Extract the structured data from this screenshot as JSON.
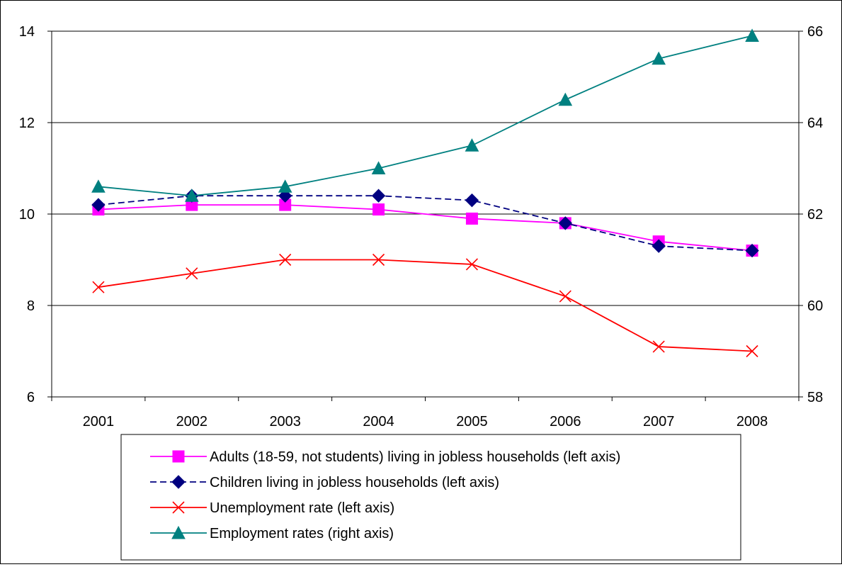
{
  "chart_data": {
    "type": "line",
    "categories": [
      "2001",
      "2002",
      "2003",
      "2004",
      "2005",
      "2006",
      "2007",
      "2008"
    ],
    "y_left": {
      "min": 6,
      "max": 14,
      "ticks": [
        "6",
        "8",
        "10",
        "12",
        "14"
      ]
    },
    "y_right": {
      "min": 58,
      "max": 66,
      "ticks": [
        "58",
        "60",
        "62",
        "64",
        "66"
      ]
    },
    "grid": "horizontal",
    "legend_position": "bottom",
    "series": [
      {
        "name": "Adults (18-59, not students) living in jobless households (left axis)",
        "axis": "left",
        "color": "#ff00ff",
        "marker": "square",
        "dash": "solid",
        "values": [
          10.1,
          10.2,
          10.2,
          10.1,
          9.9,
          9.8,
          9.4,
          9.2
        ]
      },
      {
        "name": "Children  living in jobless households (left axis)",
        "axis": "left",
        "color": "#000080",
        "marker": "diamond",
        "dash": "dashed",
        "values": [
          10.2,
          10.4,
          10.4,
          10.4,
          10.3,
          9.8,
          9.3,
          9.2
        ]
      },
      {
        "name": "Unemployment rate (left axis)",
        "axis": "left",
        "color": "#ff0000",
        "marker": "x",
        "dash": "solid",
        "values": [
          8.4,
          8.7,
          9.0,
          9.0,
          8.9,
          8.2,
          7.1,
          7.0
        ]
      },
      {
        "name": "Employment rates (right axis)",
        "axis": "right",
        "color": "#008080",
        "marker": "triangle",
        "dash": "solid",
        "values": [
          62.6,
          62.4,
          62.6,
          63.0,
          63.5,
          64.5,
          65.4,
          65.9
        ]
      }
    ]
  }
}
